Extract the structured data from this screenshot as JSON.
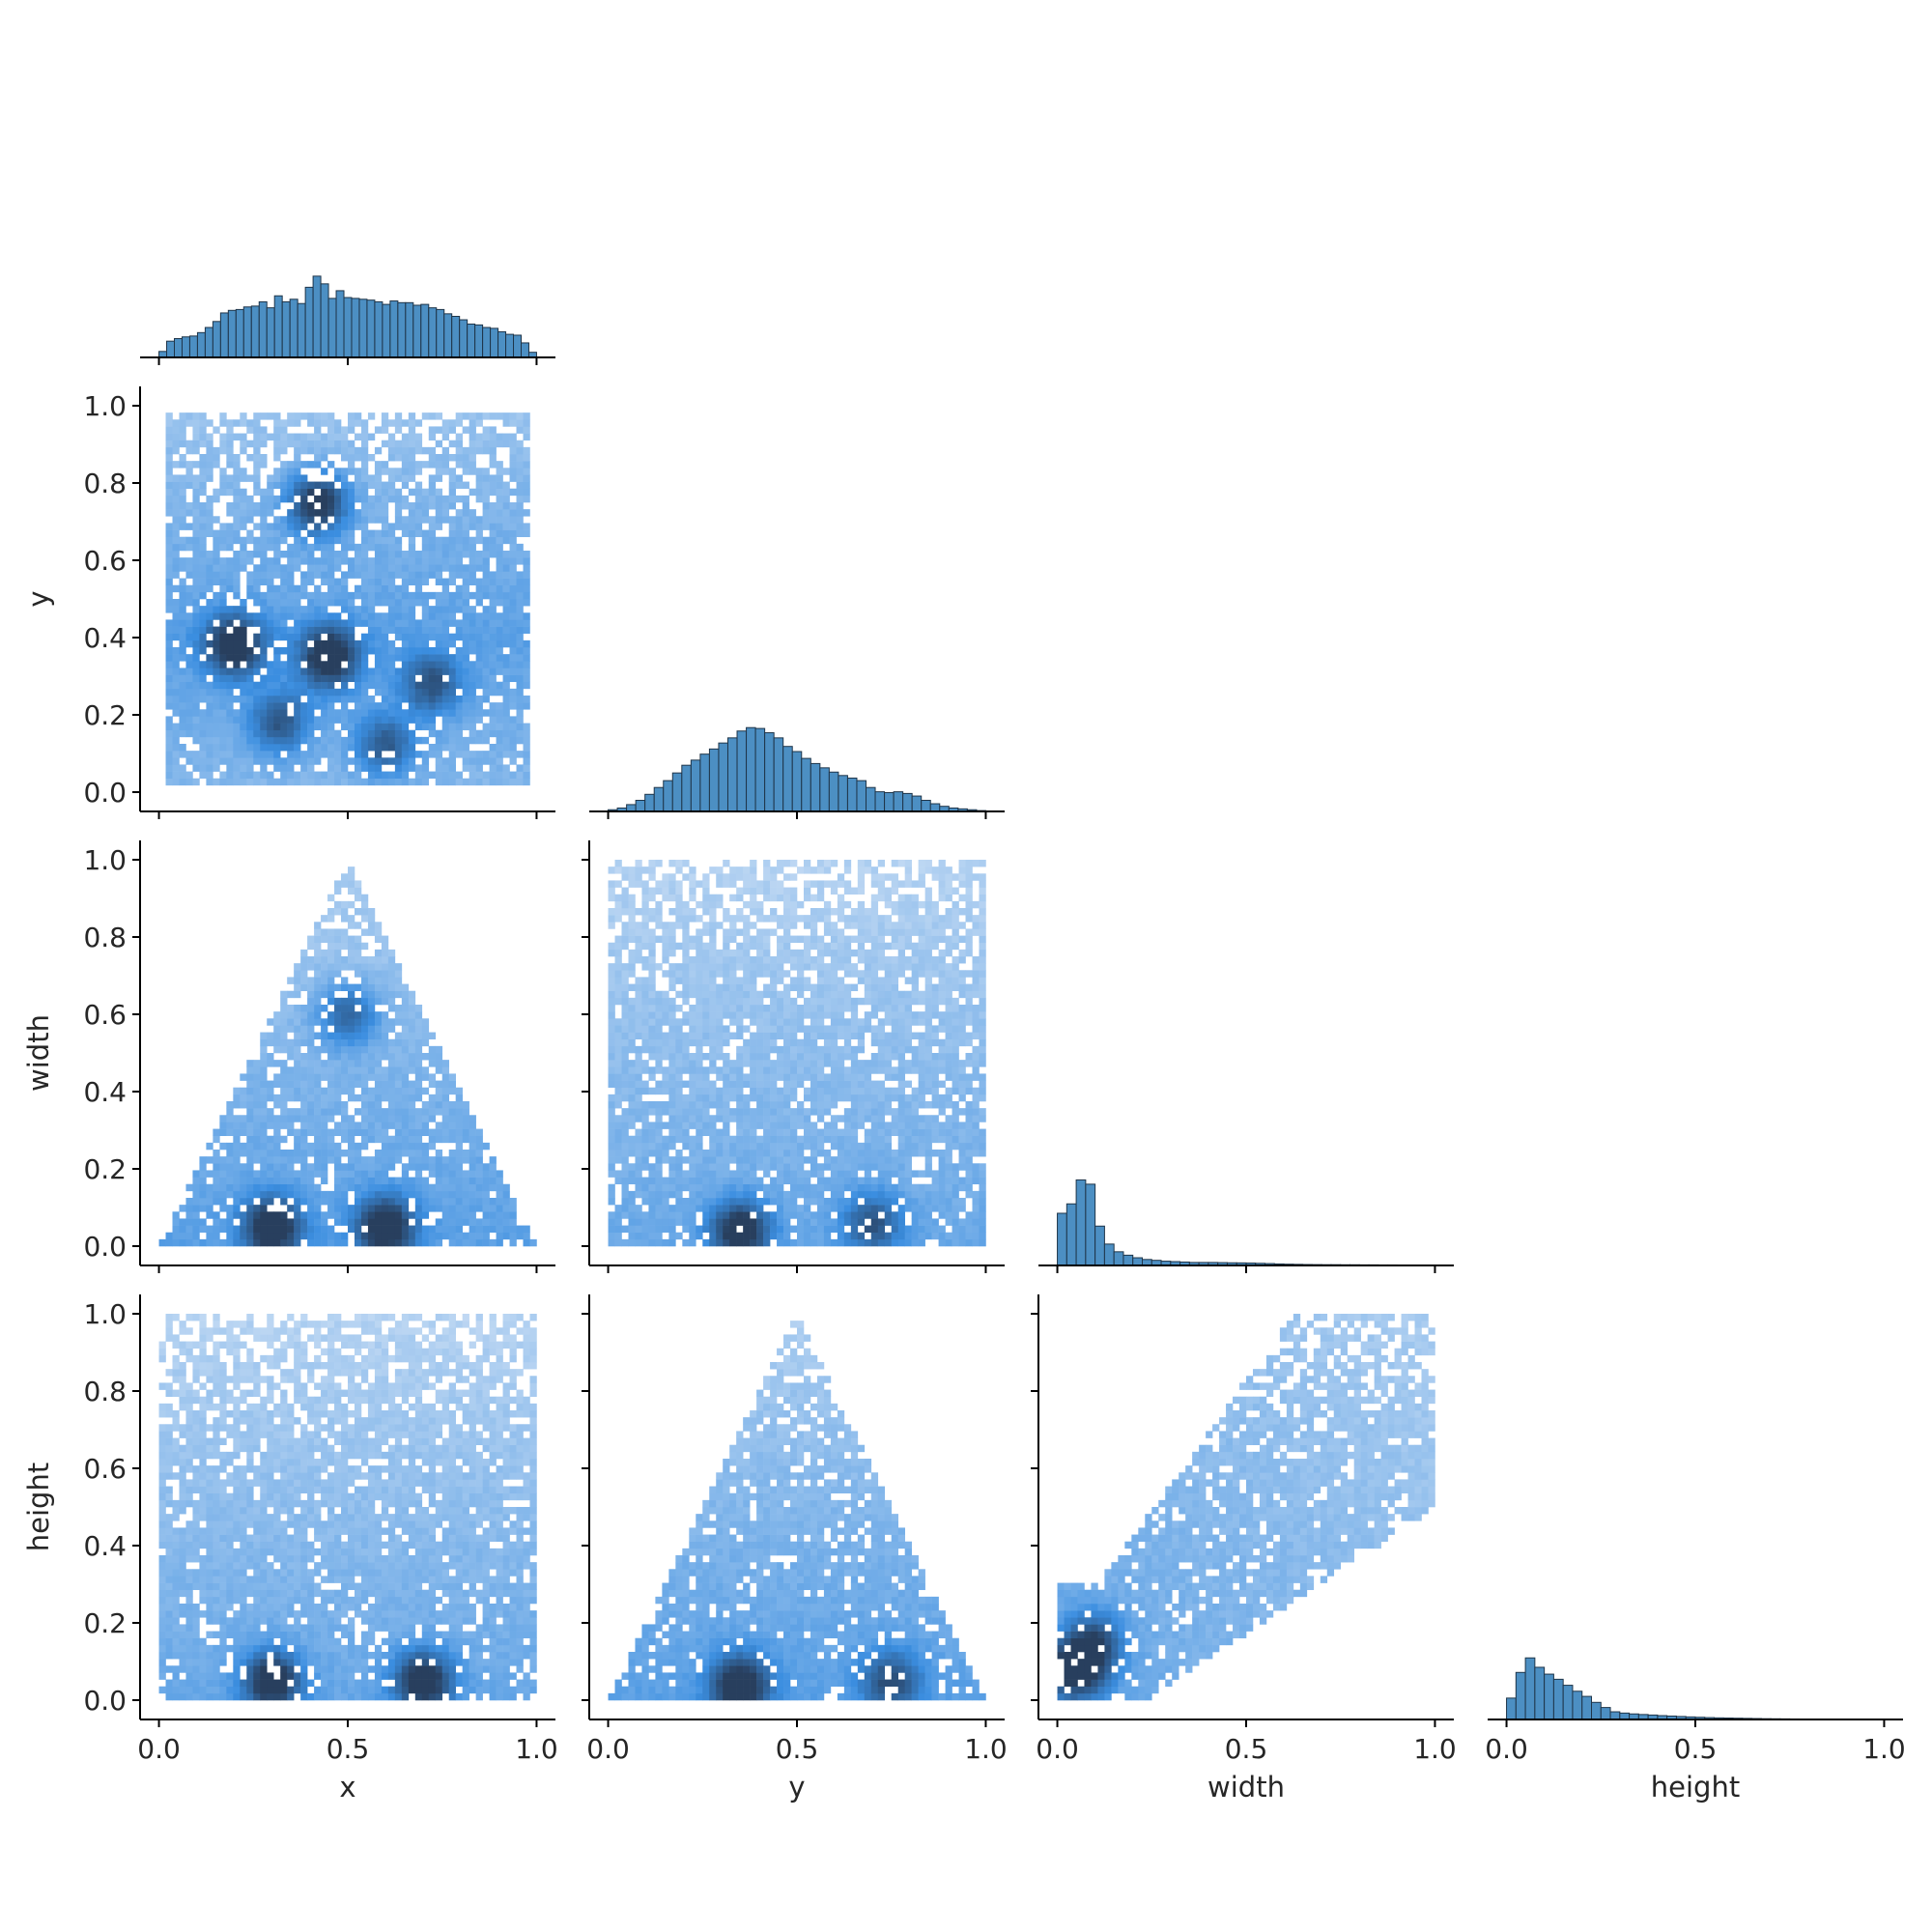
{
  "chart_data": {
    "type": "pairplot",
    "corner": true,
    "variables": [
      "x",
      "y",
      "width",
      "height"
    ],
    "colors": {
      "histogram_fill": "#4c8fc3",
      "histogram_edge": "#1f3549",
      "heat_low": "#c6dcf4",
      "heat_mid": "#3b8ee0",
      "heat_high": "#283f5e"
    },
    "axes": {
      "x": {
        "label": "x",
        "lim": [
          -0.05,
          1.05
        ],
        "ticks": [
          0.0,
          0.5,
          1.0
        ],
        "tick_labels": [
          "0.0",
          "0.5",
          "1.0"
        ]
      },
      "y": {
        "label": "y",
        "lim": [
          -0.05,
          1.05
        ],
        "ticks": [
          0.0,
          0.2,
          0.4,
          0.6,
          0.8,
          1.0
        ],
        "tick_labels": [
          "0.0",
          "0.2",
          "0.4",
          "0.6",
          "0.8",
          "1.0"
        ],
        "x_tick_labels": [
          "0.0",
          "0.5",
          "1.0"
        ]
      },
      "width": {
        "label": "width",
        "lim": [
          -0.05,
          1.05
        ],
        "ticks": [
          0.0,
          0.2,
          0.4,
          0.6,
          0.8,
          1.0
        ],
        "tick_labels": [
          "0.0",
          "0.2",
          "0.4",
          "0.6",
          "0.8",
          "1.0"
        ],
        "x_tick_labels": [
          "0.0",
          "0.5",
          "1.0"
        ]
      },
      "height": {
        "label": "height",
        "lim": [
          -0.05,
          1.05
        ],
        "ticks": [
          0.0,
          0.2,
          0.4,
          0.6,
          0.8,
          1.0
        ],
        "tick_labels": [
          "0.0",
          "0.2",
          "0.4",
          "0.6",
          "0.8",
          "1.0"
        ],
        "x_tick_labels": [
          "0.0",
          "0.5",
          "1.0"
        ]
      }
    },
    "diagonal_histograms": [
      {
        "variable": "x",
        "type": "bar",
        "bin_range": [
          0.0,
          1.0
        ],
        "relative_heights": [
          0.07,
          0.19,
          0.22,
          0.24,
          0.25,
          0.29,
          0.35,
          0.42,
          0.52,
          0.55,
          0.56,
          0.59,
          0.6,
          0.65,
          0.58,
          0.72,
          0.65,
          0.68,
          0.63,
          0.82,
          0.95,
          0.86,
          0.69,
          0.78,
          0.7,
          0.69,
          0.68,
          0.67,
          0.65,
          0.62,
          0.66,
          0.64,
          0.64,
          0.61,
          0.62,
          0.58,
          0.56,
          0.51,
          0.48,
          0.44,
          0.39,
          0.38,
          0.35,
          0.34,
          0.3,
          0.27,
          0.26,
          0.17,
          0.06
        ]
      },
      {
        "variable": "y",
        "type": "bar",
        "bin_range": [
          0.0,
          1.0
        ],
        "relative_heights": [
          0.02,
          0.04,
          0.08,
          0.13,
          0.2,
          0.28,
          0.36,
          0.45,
          0.54,
          0.6,
          0.67,
          0.73,
          0.8,
          0.86,
          0.94,
          0.98,
          0.97,
          0.92,
          0.86,
          0.76,
          0.7,
          0.62,
          0.56,
          0.51,
          0.46,
          0.42,
          0.39,
          0.36,
          0.28,
          0.23,
          0.22,
          0.23,
          0.21,
          0.18,
          0.13,
          0.09,
          0.06,
          0.04,
          0.03,
          0.02,
          0.01
        ]
      },
      {
        "variable": "width",
        "type": "bar",
        "bin_range": [
          0.0,
          1.0
        ],
        "relative_heights": [
          0.61,
          0.72,
          1.0,
          0.95,
          0.46,
          0.25,
          0.16,
          0.12,
          0.09,
          0.07,
          0.06,
          0.05,
          0.045,
          0.04,
          0.035,
          0.035,
          0.035,
          0.033,
          0.031,
          0.03,
          0.028,
          0.025,
          0.022,
          0.018,
          0.015,
          0.013,
          0.011,
          0.01,
          0.009,
          0.009,
          0.008,
          0.008,
          0.007,
          0.007,
          0.006,
          0.006,
          0.005,
          0.005,
          0.005,
          0.005
        ]
      },
      {
        "variable": "height",
        "type": "bar",
        "bin_range": [
          0.0,
          1.0
        ],
        "relative_heights": [
          0.25,
          0.55,
          0.72,
          0.61,
          0.53,
          0.47,
          0.4,
          0.33,
          0.27,
          0.2,
          0.14,
          0.09,
          0.075,
          0.065,
          0.058,
          0.052,
          0.045,
          0.04,
          0.035,
          0.03,
          0.026,
          0.022,
          0.019,
          0.017,
          0.015,
          0.013,
          0.011,
          0.009,
          0.008,
          0.007,
          0.006,
          0.005,
          0.004,
          0.003,
          0.003,
          0.002,
          0.002,
          0.001,
          0.001,
          0.001
        ]
      }
    ],
    "bivariate_histograms": [
      {
        "x": "x",
        "y": "y",
        "type": "heatmap",
        "support": "rectangle x∈[0.01,0.99], y∈[0.02,0.98]",
        "density_peaks": [
          {
            "x": 0.42,
            "y": 0.75,
            "level": "high"
          },
          {
            "x": 0.45,
            "y": 0.35,
            "level": "high"
          },
          {
            "x": 0.2,
            "y": 0.38,
            "level": "high"
          },
          {
            "x": 0.72,
            "y": 0.28,
            "level": "mid"
          },
          {
            "x": 0.32,
            "y": 0.18,
            "level": "mid"
          },
          {
            "x": 0.6,
            "y": 0.12,
            "level": "mid"
          }
        ]
      },
      {
        "x": "x",
        "y": "width",
        "type": "heatmap",
        "support": "triangle with apex (0.5, 1.0) and base from 0.0 to 1.0",
        "density_peaks": [
          {
            "x": 0.3,
            "y": 0.05,
            "level": "high"
          },
          {
            "x": 0.6,
            "y": 0.05,
            "level": "high"
          },
          {
            "x": 0.5,
            "y": 0.6,
            "level": "mid"
          }
        ]
      },
      {
        "x": "y",
        "y": "width",
        "type": "heatmap",
        "support": "y∈[0.0,1.0], width∈[0.0,1.0], denser near width=0",
        "density_peaks": [
          {
            "x": 0.35,
            "y": 0.04,
            "level": "high"
          },
          {
            "x": 0.7,
            "y": 0.06,
            "level": "mid"
          }
        ]
      },
      {
        "x": "x",
        "y": "height",
        "type": "heatmap",
        "support": "x∈[0.0,1.0], height∈[0.0,1.0], vertical streak at x=0.5",
        "density_peaks": [
          {
            "x": 0.3,
            "y": 0.05,
            "level": "high"
          },
          {
            "x": 0.7,
            "y": 0.05,
            "level": "high"
          }
        ]
      },
      {
        "x": "y",
        "y": "height",
        "type": "heatmap",
        "support": "triangle with apex (0.5, 1.0) and base from 0.0 to 1.0",
        "density_peaks": [
          {
            "x": 0.35,
            "y": 0.04,
            "level": "high"
          },
          {
            "x": 0.75,
            "y": 0.05,
            "level": "mid"
          }
        ]
      },
      {
        "x": "width",
        "y": "height",
        "type": "heatmap",
        "support": "positively correlated cloud from (0,0) toward (1,1)",
        "density_peaks": [
          {
            "x": 0.05,
            "y": 0.08,
            "level": "high"
          },
          {
            "x": 0.1,
            "y": 0.15,
            "level": "mid"
          }
        ]
      }
    ]
  }
}
